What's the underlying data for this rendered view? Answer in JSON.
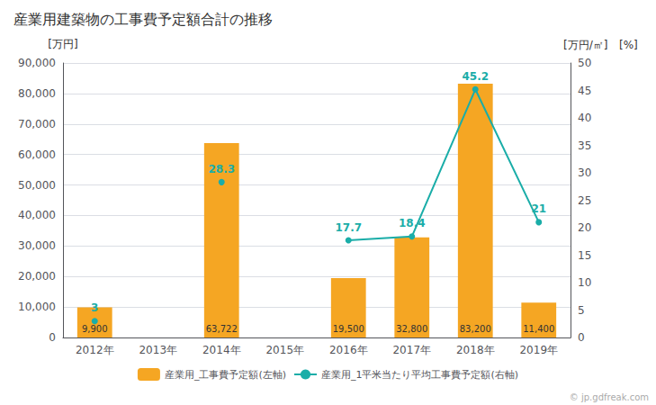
{
  "chart_data": {
    "type": "bar",
    "title": "産業用建築物の工事費予定額合計の推移",
    "categories": [
      "2012年",
      "2013年",
      "2014年",
      "2015年",
      "2016年",
      "2017年",
      "2018年",
      "2019年"
    ],
    "series": [
      {
        "name": "産業用_工事費予定額(左軸)",
        "type": "bar",
        "color": "#F5A623",
        "values": [
          9900,
          0,
          63722,
          0,
          19500,
          32800,
          83200,
          11400
        ],
        "value_labels": [
          "9,900",
          null,
          "63,722",
          null,
          "19,500",
          "32,800",
          "83,200",
          "11,400"
        ]
      },
      {
        "name": "産業用_1平米当たり平均工事費予定額(右軸)",
        "type": "line",
        "axis": "y2",
        "color": "#1AADA8",
        "marker": "circle",
        "values": [
          3.0,
          null,
          28.3,
          null,
          17.7,
          18.4,
          45.2,
          21.0
        ]
      }
    ],
    "ylabel": "[万円]",
    "y2label": [
      "[万円/㎡]",
      "[%]"
    ],
    "ylim": [
      0,
      90000
    ],
    "yticks": [
      0,
      {
        "value": 10000,
        "label": "10,000"
      },
      {
        "value": 20000,
        "label": "20,000"
      },
      {
        "value": 30000,
        "label": "30,000"
      },
      {
        "value": 40000,
        "label": "40,000"
      },
      {
        "value": 50000,
        "label": "50,000"
      },
      {
        "value": 60000,
        "label": "60,000"
      },
      {
        "value": 70000,
        "label": "70,000"
      },
      {
        "value": 80000,
        "label": "80,000"
      },
      {
        "value": 90000,
        "label": "90,000"
      }
    ],
    "y2lim": [
      0,
      50
    ],
    "y2ticks": [
      0,
      5,
      10,
      15,
      20,
      25,
      30,
      35,
      40,
      45,
      50
    ],
    "grid": true,
    "legend": "bottom",
    "data_labels": true,
    "annotations": [
      "© jp.gdfreak.com"
    ]
  }
}
